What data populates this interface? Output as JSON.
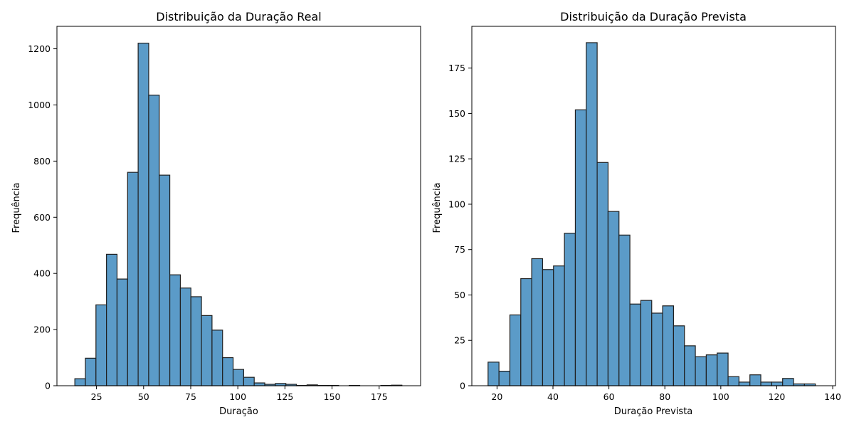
{
  "colors": {
    "bar_fill": "#5b9bc8",
    "bar_edge": "#1f1f1f"
  },
  "chart_data": [
    {
      "type": "bar",
      "title": "Distribuição da Duração Real",
      "xlabel": "Duração",
      "ylabel": "Frequência",
      "xlim": [
        4,
        197
      ],
      "ylim": [
        0,
        1280
      ],
      "xticks": [
        25,
        50,
        75,
        100,
        125,
        150,
        175
      ],
      "yticks": [
        0,
        200,
        400,
        600,
        800,
        1000,
        1200
      ],
      "bins": [
        {
          "x0": 13.5,
          "x1": 19.1,
          "value": 25
        },
        {
          "x0": 19.1,
          "x1": 24.7,
          "value": 98
        },
        {
          "x0": 24.7,
          "x1": 30.3,
          "value": 288
        },
        {
          "x0": 30.3,
          "x1": 35.9,
          "value": 468
        },
        {
          "x0": 35.9,
          "x1": 41.5,
          "value": 380
        },
        {
          "x0": 41.5,
          "x1": 47.1,
          "value": 760
        },
        {
          "x0": 47.1,
          "x1": 52.7,
          "value": 1220
        },
        {
          "x0": 52.7,
          "x1": 58.3,
          "value": 1035
        },
        {
          "x0": 58.3,
          "x1": 63.9,
          "value": 750
        },
        {
          "x0": 63.9,
          "x1": 69.5,
          "value": 395
        },
        {
          "x0": 69.5,
          "x1": 75.1,
          "value": 348
        },
        {
          "x0": 75.1,
          "x1": 80.7,
          "value": 317
        },
        {
          "x0": 80.7,
          "x1": 86.3,
          "value": 250
        },
        {
          "x0": 86.3,
          "x1": 91.9,
          "value": 198
        },
        {
          "x0": 91.9,
          "x1": 97.5,
          "value": 100
        },
        {
          "x0": 97.5,
          "x1": 103.1,
          "value": 58
        },
        {
          "x0": 103.1,
          "x1": 108.7,
          "value": 30
        },
        {
          "x0": 108.7,
          "x1": 114.3,
          "value": 10
        },
        {
          "x0": 114.3,
          "x1": 119.9,
          "value": 5
        },
        {
          "x0": 119.9,
          "x1": 125.5,
          "value": 8
        },
        {
          "x0": 125.5,
          "x1": 131.1,
          "value": 5
        },
        {
          "x0": 131.1,
          "x1": 136.7,
          "value": 1
        },
        {
          "x0": 136.7,
          "x1": 142.3,
          "value": 3
        },
        {
          "x0": 142.3,
          "x1": 147.9,
          "value": 1
        },
        {
          "x0": 147.9,
          "x1": 153.5,
          "value": 1
        },
        {
          "x0": 153.5,
          "x1": 159.1,
          "value": 0
        },
        {
          "x0": 159.1,
          "x1": 164.7,
          "value": 1
        },
        {
          "x0": 164.7,
          "x1": 170.3,
          "value": 0
        },
        {
          "x0": 170.3,
          "x1": 175.9,
          "value": 0
        },
        {
          "x0": 175.9,
          "x1": 181.5,
          "value": 1
        },
        {
          "x0": 181.5,
          "x1": 187.1,
          "value": 2
        }
      ]
    },
    {
      "type": "bar",
      "title": "Distribuição da Duração Prevista",
      "xlabel": "Duração Prevista",
      "ylabel": "Frequência",
      "xlim": [
        11,
        141
      ],
      "ylim": [
        0,
        198
      ],
      "xticks": [
        20,
        40,
        60,
        80,
        100,
        120,
        140
      ],
      "yticks": [
        0,
        25,
        50,
        75,
        100,
        125,
        150,
        175
      ],
      "bins": [
        {
          "x0": 16.8,
          "x1": 20.7,
          "value": 13
        },
        {
          "x0": 20.7,
          "x1": 24.6,
          "value": 8
        },
        {
          "x0": 24.6,
          "x1": 28.5,
          "value": 39
        },
        {
          "x0": 28.5,
          "x1": 32.4,
          "value": 59
        },
        {
          "x0": 32.4,
          "x1": 36.3,
          "value": 70
        },
        {
          "x0": 36.3,
          "x1": 40.2,
          "value": 64
        },
        {
          "x0": 40.2,
          "x1": 44.1,
          "value": 66
        },
        {
          "x0": 44.1,
          "x1": 48.0,
          "value": 84
        },
        {
          "x0": 48.0,
          "x1": 51.9,
          "value": 152
        },
        {
          "x0": 51.9,
          "x1": 55.8,
          "value": 189
        },
        {
          "x0": 55.8,
          "x1": 59.7,
          "value": 123
        },
        {
          "x0": 59.7,
          "x1": 63.6,
          "value": 96
        },
        {
          "x0": 63.6,
          "x1": 67.5,
          "value": 83
        },
        {
          "x0": 67.5,
          "x1": 71.4,
          "value": 45
        },
        {
          "x0": 71.4,
          "x1": 75.3,
          "value": 47
        },
        {
          "x0": 75.3,
          "x1": 79.2,
          "value": 40
        },
        {
          "x0": 79.2,
          "x1": 83.1,
          "value": 44
        },
        {
          "x0": 83.1,
          "x1": 87.0,
          "value": 33
        },
        {
          "x0": 87.0,
          "x1": 90.9,
          "value": 22
        },
        {
          "x0": 90.9,
          "x1": 94.8,
          "value": 16
        },
        {
          "x0": 94.8,
          "x1": 98.7,
          "value": 17
        },
        {
          "x0": 98.7,
          "x1": 102.6,
          "value": 18
        },
        {
          "x0": 102.6,
          "x1": 106.5,
          "value": 5
        },
        {
          "x0": 106.5,
          "x1": 110.4,
          "value": 2
        },
        {
          "x0": 110.4,
          "x1": 114.3,
          "value": 6
        },
        {
          "x0": 114.3,
          "x1": 118.2,
          "value": 2
        },
        {
          "x0": 118.2,
          "x1": 122.1,
          "value": 2
        },
        {
          "x0": 122.1,
          "x1": 126.0,
          "value": 4
        },
        {
          "x0": 126.0,
          "x1": 129.9,
          "value": 1
        },
        {
          "x0": 129.9,
          "x1": 133.8,
          "value": 1
        }
      ]
    }
  ]
}
